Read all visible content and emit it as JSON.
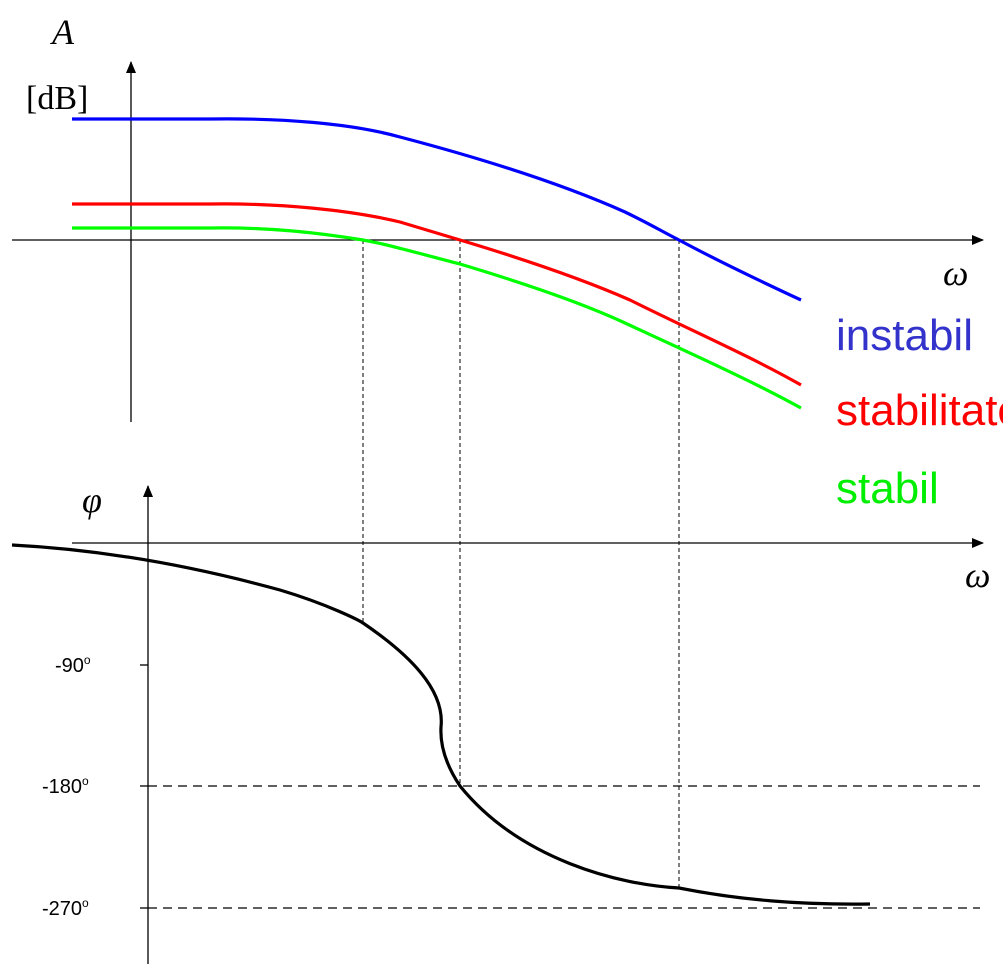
{
  "magnitude_plot": {
    "y_axis_symbol": "A",
    "y_axis_unit": "[dB]",
    "x_axis_symbol": "ω"
  },
  "phase_plot": {
    "y_axis_symbol": "φ",
    "x_axis_symbol": "ω",
    "ticks": [
      {
        "label": "-90",
        "unit": "o"
      },
      {
        "label": "-180",
        "unit": "o"
      },
      {
        "label": "-270",
        "unit": "o"
      }
    ]
  },
  "legend": [
    {
      "label": "instabil",
      "color": "#3333cc"
    },
    {
      "label": "stabilitate",
      "color": "#ff0000"
    },
    {
      "label": "stabil",
      "color": "#00ee00"
    }
  ],
  "colors": {
    "blue_curve": "#0000ff",
    "red_curve": "#ff0000",
    "green_curve": "#00ff00",
    "phase_curve": "#000000",
    "axes": "#000000"
  }
}
